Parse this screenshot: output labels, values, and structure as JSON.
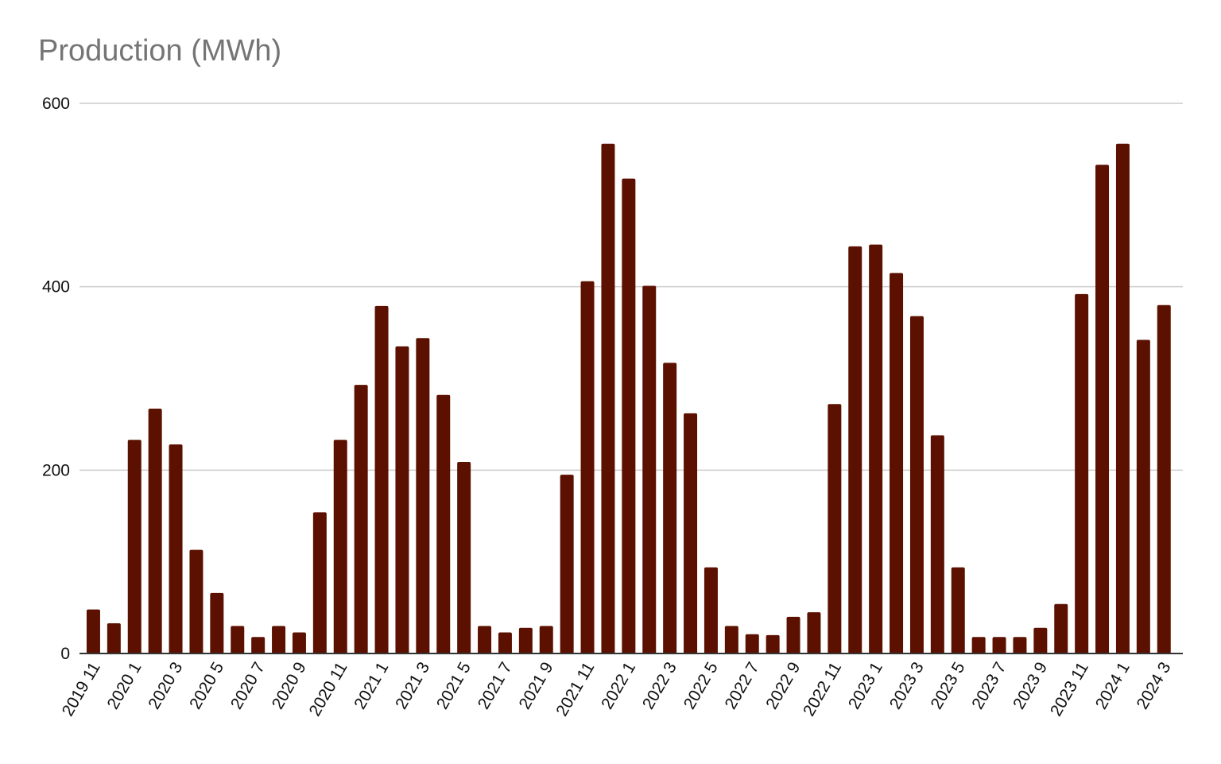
{
  "chart_data": {
    "type": "bar",
    "title": "Production (MWh)",
    "xlabel": "",
    "ylabel": "",
    "ylim": [
      0,
      600
    ],
    "yticks": [
      0,
      200,
      400,
      600
    ],
    "grid": true,
    "legend": "none",
    "bar_color": "#5c1100",
    "gridline_color": "#cccccc",
    "axis_color": "#333333",
    "title_color": "#757575",
    "categories": [
      "2019 11",
      "2019 12",
      "2020 1",
      "2020 2",
      "2020 3",
      "2020 4",
      "2020 5",
      "2020 6",
      "2020 7",
      "2020 8",
      "2020 9",
      "2020 10",
      "2020 11",
      "2020 12",
      "2021 1",
      "2021 2",
      "2021 3",
      "2021 4",
      "2021 5",
      "2021 6",
      "2021 7",
      "2021 8",
      "2021 9",
      "2021 10",
      "2021 11",
      "2021 12",
      "2022 1",
      "2022 2",
      "2022 3",
      "2022 4",
      "2022 5",
      "2022 6",
      "2022 7",
      "2022 8",
      "2022 9",
      "2022 10",
      "2022 11",
      "2022 12",
      "2023 1",
      "2023 2",
      "2023 3",
      "2023 4",
      "2023 5",
      "2023 6",
      "2023 7",
      "2023 8",
      "2023 9",
      "2023 10",
      "2023 11",
      "2023 12",
      "2024 1",
      "2024 2",
      "2024 3"
    ],
    "tick_labels": [
      "2019 11",
      "2020 1",
      "2020 3",
      "2020 5",
      "2020 7",
      "2020 9",
      "2020 11",
      "2021 1",
      "2021 3",
      "2021 5",
      "2021 7",
      "2021 9",
      "2021 11",
      "2022 1",
      "2022 3",
      "2022 5",
      "2022 7",
      "2022 9",
      "2022 11",
      "2023 1",
      "2023 3",
      "2023 5",
      "2023 7",
      "2023 9",
      "2023 11",
      "2024 1",
      "2024 3"
    ],
    "series": [
      {
        "values": [
          48,
          33,
          233,
          267,
          228,
          113,
          66,
          30,
          18,
          30,
          23,
          154,
          233,
          293,
          379,
          335,
          344,
          282,
          209,
          30,
          23,
          28,
          30,
          195,
          406,
          556,
          518,
          401,
          317,
          262,
          94,
          30,
          21,
          20,
          40,
          45,
          272,
          444,
          446,
          415,
          368,
          238,
          94,
          18,
          18,
          18,
          28,
          54,
          392,
          533,
          556,
          342,
          380
        ]
      }
    ]
  }
}
